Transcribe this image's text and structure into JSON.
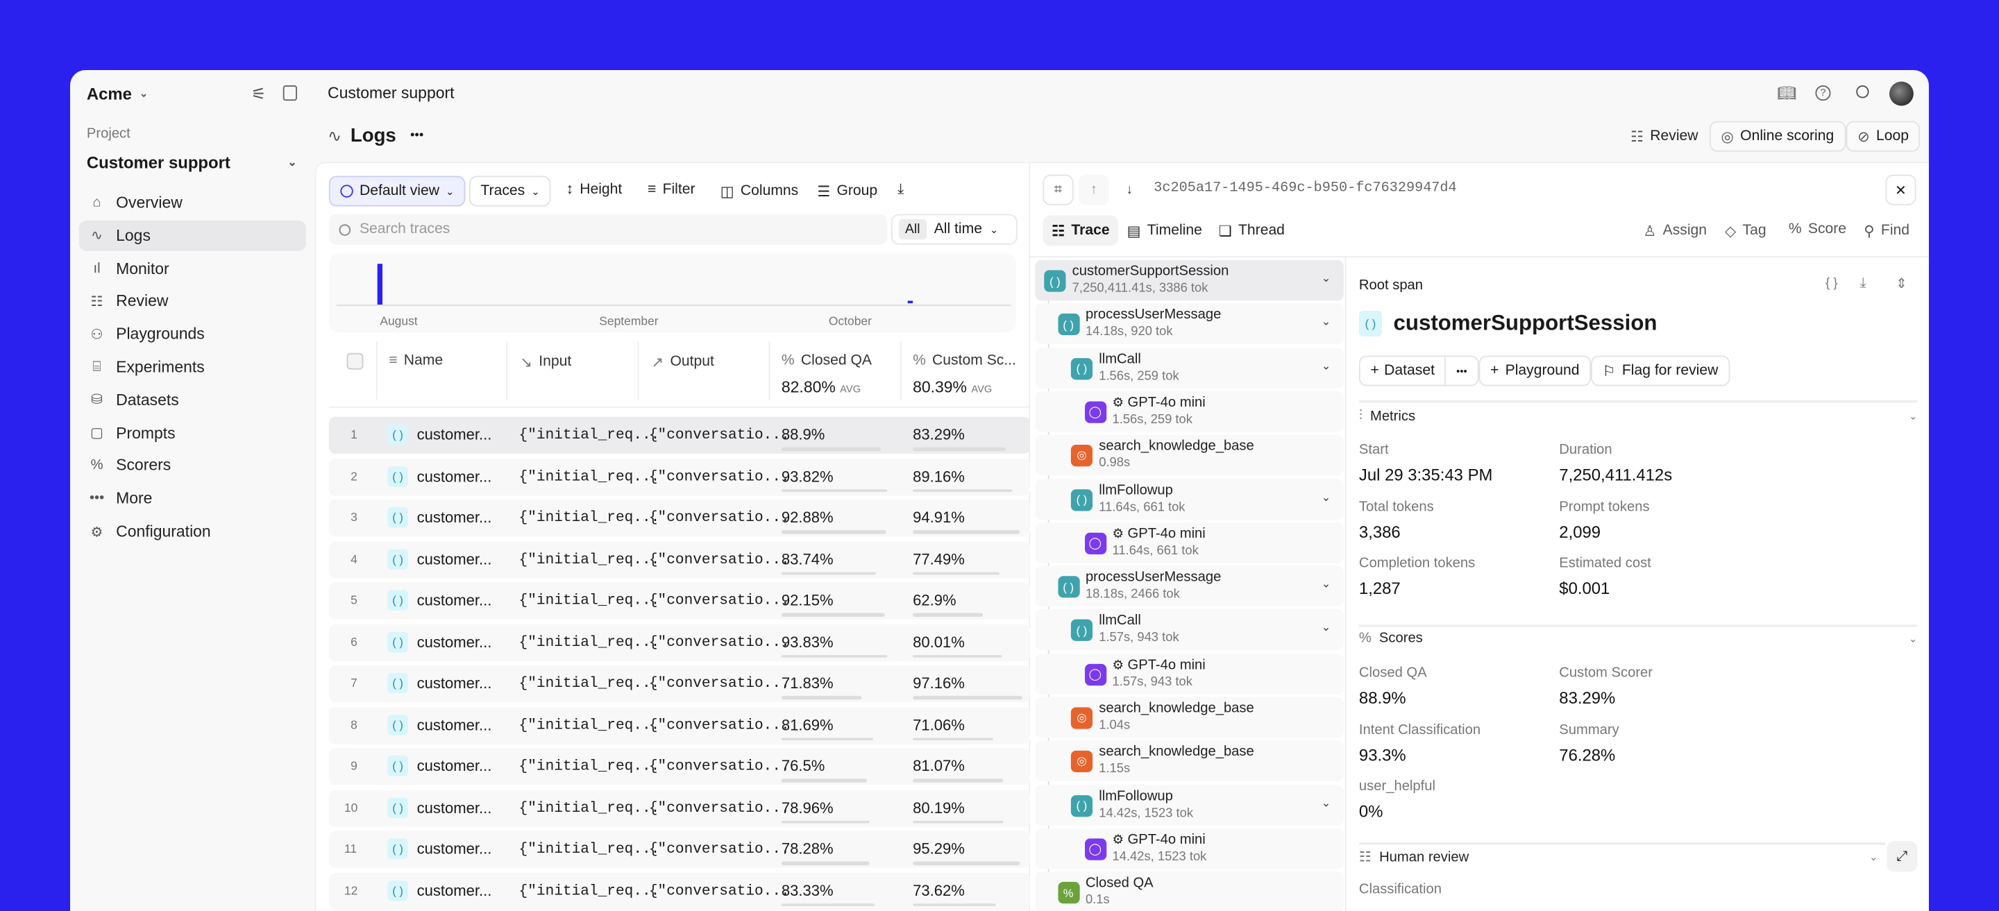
{
  "colors": {
    "background": "#2b21ee",
    "accent": "#3a2ef0",
    "span_function": "#3fa3ad",
    "span_llm": "#7c3aed",
    "span_tool": "#e8632b",
    "span_score": "#6aa33a"
  },
  "topbar": {
    "org": "Acme",
    "breadcrumb": "Customer support",
    "icons": [
      "sliders-icon",
      "sidebar-toggle-icon",
      "book-icon",
      "help-icon",
      "search-icon",
      "avatar"
    ]
  },
  "sidebar": {
    "project_label": "Project",
    "project": "Customer support",
    "items": [
      {
        "label": "Overview",
        "icon": "home-icon"
      },
      {
        "label": "Logs",
        "icon": "activity-icon",
        "active": true
      },
      {
        "label": "Monitor",
        "icon": "bar-chart-icon"
      },
      {
        "label": "Review",
        "icon": "checklist-icon"
      },
      {
        "label": "Playgrounds",
        "icon": "shapes-icon"
      },
      {
        "label": "Experiments",
        "icon": "flask-icon"
      },
      {
        "label": "Datasets",
        "icon": "database-icon"
      },
      {
        "label": "Prompts",
        "icon": "message-icon"
      },
      {
        "label": "Scorers",
        "icon": "percent-icon"
      },
      {
        "label": "More",
        "icon": "ellipsis-icon"
      },
      {
        "label": "Configuration",
        "icon": "settings-icon"
      }
    ]
  },
  "page": {
    "title": "Logs",
    "more": "•••",
    "actions": {
      "review": "Review",
      "online_scoring": "Online scoring",
      "loop": "Loop"
    }
  },
  "toolbar": {
    "view": "Default view",
    "traces": "Traces",
    "height": "Height",
    "filter": "Filter",
    "columns": "Columns",
    "group": "Group"
  },
  "search": {
    "placeholder": "Search traces",
    "all": "All",
    "time": "All time"
  },
  "histogram": {
    "months": [
      "August",
      "September",
      "October"
    ]
  },
  "table": {
    "headers": {
      "name": "Name",
      "input": "Input",
      "output": "Output",
      "closed_qa": "Closed QA",
      "custom": "Custom Sc..."
    },
    "avg": {
      "closed_qa": "82.80%",
      "custom": "80.39%",
      "label": "AVG"
    },
    "rows": [
      {
        "n": "1",
        "name": "customer...",
        "input": "{\"initial_req...",
        "output": "{\"conversatio...",
        "qa": "88.9%",
        "qa_v": 88.9,
        "cs": "83.29%",
        "cs_v": 83.29
      },
      {
        "n": "2",
        "name": "customer...",
        "input": "{\"initial_req...",
        "output": "{\"conversatio...",
        "qa": "93.82%",
        "qa_v": 93.82,
        "cs": "89.16%",
        "cs_v": 89.16
      },
      {
        "n": "3",
        "name": "customer...",
        "input": "{\"initial_req...",
        "output": "{\"conversatio...",
        "qa": "92.88%",
        "qa_v": 92.88,
        "cs": "94.91%",
        "cs_v": 94.91
      },
      {
        "n": "4",
        "name": "customer...",
        "input": "{\"initial_req...",
        "output": "{\"conversatio...",
        "qa": "83.74%",
        "qa_v": 83.74,
        "cs": "77.49%",
        "cs_v": 77.49
      },
      {
        "n": "5",
        "name": "customer...",
        "input": "{\"initial_req...",
        "output": "{\"conversatio...",
        "qa": "92.15%",
        "qa_v": 92.15,
        "cs": "62.9%",
        "cs_v": 62.9
      },
      {
        "n": "6",
        "name": "customer...",
        "input": "{\"initial_req...",
        "output": "{\"conversatio...",
        "qa": "93.83%",
        "qa_v": 93.83,
        "cs": "80.01%",
        "cs_v": 80.01
      },
      {
        "n": "7",
        "name": "customer...",
        "input": "{\"initial_req...",
        "output": "{\"conversatio...",
        "qa": "71.83%",
        "qa_v": 71.83,
        "cs": "97.16%",
        "cs_v": 97.16
      },
      {
        "n": "8",
        "name": "customer...",
        "input": "{\"initial_req...",
        "output": "{\"conversatio...",
        "qa": "81.69%",
        "qa_v": 81.69,
        "cs": "71.06%",
        "cs_v": 71.06
      },
      {
        "n": "9",
        "name": "customer...",
        "input": "{\"initial_req...",
        "output": "{\"conversatio...",
        "qa": "76.5%",
        "qa_v": 76.5,
        "cs": "81.07%",
        "cs_v": 81.07
      },
      {
        "n": "10",
        "name": "customer...",
        "input": "{\"initial_req...",
        "output": "{\"conversatio...",
        "qa": "78.96%",
        "qa_v": 78.96,
        "cs": "80.19%",
        "cs_v": 80.19
      },
      {
        "n": "11",
        "name": "customer...",
        "input": "{\"initial_req...",
        "output": "{\"conversatio...",
        "qa": "78.28%",
        "qa_v": 78.28,
        "cs": "95.29%",
        "cs_v": 95.29
      },
      {
        "n": "12",
        "name": "customer...",
        "input": "{\"initial_req...",
        "output": "{\"conversatio...",
        "qa": "83.33%",
        "qa_v": 83.33,
        "cs": "73.62%",
        "cs_v": 73.62
      }
    ]
  },
  "trace": {
    "id": "3c205a17-1495-469c-b950-fc76329947d4",
    "tabs": [
      "Trace",
      "Timeline",
      "Thread"
    ],
    "actions": [
      "Assign",
      "Tag",
      "Score",
      "Find"
    ],
    "spans": [
      {
        "name": "customerSupportSession",
        "meta": "7,250,411.41s, 3386 tok",
        "type": "function",
        "level": 0,
        "chev": true,
        "sel": true
      },
      {
        "name": "processUserMessage",
        "meta": "14.18s, 920 tok",
        "type": "function",
        "level": 1,
        "chev": true
      },
      {
        "name": "llmCall",
        "meta": "1.56s, 259 tok",
        "type": "function",
        "level": 2,
        "chev": true
      },
      {
        "name": "GPT-4o mini",
        "meta": "1.56s, 259 tok",
        "type": "llm",
        "level": 3
      },
      {
        "name": "search_knowledge_base",
        "meta": "0.98s",
        "type": "tool",
        "level": 2
      },
      {
        "name": "llmFollowup",
        "meta": "11.64s, 661 tok",
        "type": "function",
        "level": 2,
        "chev": true
      },
      {
        "name": "GPT-4o mini",
        "meta": "11.64s, 661 tok",
        "type": "llm",
        "level": 3
      },
      {
        "name": "processUserMessage",
        "meta": "18.18s, 2466 tok",
        "type": "function",
        "level": 1,
        "chev": true
      },
      {
        "name": "llmCall",
        "meta": "1.57s, 943 tok",
        "type": "function",
        "level": 2,
        "chev": true
      },
      {
        "name": "GPT-4o mini",
        "meta": "1.57s, 943 tok",
        "type": "llm",
        "level": 3
      },
      {
        "name": "search_knowledge_base",
        "meta": "1.04s",
        "type": "tool",
        "level": 2
      },
      {
        "name": "search_knowledge_base",
        "meta": "1.15s",
        "type": "tool",
        "level": 2
      },
      {
        "name": "llmFollowup",
        "meta": "14.42s, 1523 tok",
        "type": "function",
        "level": 2,
        "chev": true
      },
      {
        "name": "GPT-4o mini",
        "meta": "14.42s, 1523 tok",
        "type": "llm",
        "level": 3
      },
      {
        "name": "Closed QA",
        "meta": "0.1s",
        "type": "score",
        "level": 1
      }
    ]
  },
  "detail": {
    "root_label": "Root span",
    "title": "customerSupportSession",
    "buttons": {
      "dataset": "Dataset",
      "more": "•••",
      "playground": "Playground",
      "flag": "Flag for review"
    },
    "metrics": {
      "title": "Metrics",
      "items": [
        {
          "label": "Start",
          "value": "Jul 29 3:35:43 PM"
        },
        {
          "label": "Duration",
          "value": "7,250,411.412s"
        },
        {
          "label": "Total tokens",
          "value": "3,386"
        },
        {
          "label": "Prompt tokens",
          "value": "2,099"
        },
        {
          "label": "Completion tokens",
          "value": "1,287"
        },
        {
          "label": "Estimated cost",
          "value": "$0.001"
        }
      ]
    },
    "scores": {
      "title": "Scores",
      "items": [
        {
          "label": "Closed QA",
          "value": "88.9%"
        },
        {
          "label": "Custom Scorer",
          "value": "83.29%"
        },
        {
          "label": "Intent Classification",
          "value": "93.3%"
        },
        {
          "label": "Summary",
          "value": "76.28%"
        },
        {
          "label": "user_helpful",
          "value": "0%"
        }
      ]
    },
    "human_review": {
      "title": "Human review",
      "first_label": "Classification"
    }
  }
}
